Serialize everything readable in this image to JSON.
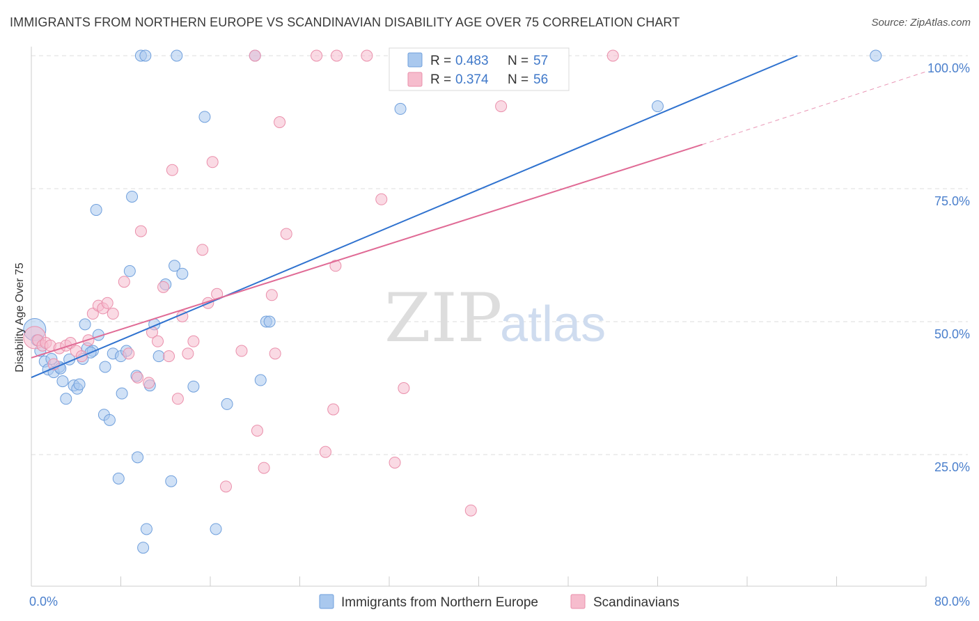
{
  "title": "IMMIGRANTS FROM NORTHERN EUROPE VS SCANDINAVIAN DISABILITY AGE OVER 75 CORRELATION CHART",
  "source": "Source: ZipAtlas.com",
  "watermark": {
    "part1": "ZIP",
    "part2": "atlas"
  },
  "colors": {
    "blue_fill": "#a9c8ee",
    "blue_stroke": "#6f9fdc",
    "blue_line": "#2f72cf",
    "pink_fill": "#f6bccd",
    "pink_stroke": "#ea8fab",
    "pink_line": "#e06a95",
    "grid": "#dddddd",
    "axis_text": "#4a7fcc"
  },
  "legend": {
    "rows": [
      {
        "r_label": "R =",
        "r_value": "0.483",
        "n_label": "N =",
        "n_value": "57"
      },
      {
        "r_label": "R =",
        "r_value": "0.374",
        "n_label": "N =",
        "n_value": "56"
      }
    ]
  },
  "chart_data": {
    "type": "scatter",
    "title": "IMMIGRANTS FROM NORTHERN EUROPE VS SCANDINAVIAN DISABILITY AGE OVER 75 CORRELATION CHART",
    "xlabel": "",
    "ylabel": "Disability Age Over 75",
    "xlim": [
      0,
      80
    ],
    "ylim": [
      0,
      104
    ],
    "x_tick_labels": [
      "0.0%",
      "80.0%"
    ],
    "y_ticks": [
      25,
      50,
      75,
      100
    ],
    "y_tick_labels": [
      "25.0%",
      "50.0%",
      "75.0%",
      "100.0%"
    ],
    "grid": true,
    "series": [
      {
        "name": "Immigrants from Northern Europe",
        "color": "#6f9fdc",
        "r": 0.483,
        "n": 57,
        "trend": {
          "x0": 0,
          "y0": 39.5,
          "x1": 68.5,
          "y1": 100
        },
        "points": [
          [
            0.3,
            48.5
          ],
          [
            0.5,
            46.5
          ],
          [
            0.8,
            44.5
          ],
          [
            1.2,
            42.5
          ],
          [
            1.5,
            41
          ],
          [
            1.8,
            43
          ],
          [
            2.0,
            40.5
          ],
          [
            2.5,
            41.5
          ],
          [
            2.8,
            38.8
          ],
          [
            3.1,
            35.5
          ],
          [
            3.4,
            42.9
          ],
          [
            3.8,
            38.0
          ],
          [
            4.1,
            37.4
          ],
          [
            4.3,
            38.2
          ],
          [
            4.6,
            43
          ],
          [
            4.8,
            49.5
          ],
          [
            5.0,
            45
          ],
          [
            5.5,
            44.5
          ],
          [
            5.8,
            71
          ],
          [
            6.0,
            47.5
          ],
          [
            6.5,
            32.5
          ],
          [
            6.6,
            41.5
          ],
          [
            7.0,
            31.5
          ],
          [
            7.3,
            44
          ],
          [
            7.8,
            20.5
          ],
          [
            8.0,
            43.5
          ],
          [
            8.1,
            36.5
          ],
          [
            8.5,
            44.5
          ],
          [
            8.8,
            59.5
          ],
          [
            9.0,
            73.5
          ],
          [
            9.4,
            39.8
          ],
          [
            9.5,
            24.5
          ],
          [
            9.8,
            100
          ],
          [
            10.0,
            7.5
          ],
          [
            10.2,
            100
          ],
          [
            10.3,
            11.0
          ],
          [
            10.6,
            38
          ],
          [
            11.0,
            49.5
          ],
          [
            11.4,
            43.5
          ],
          [
            12.0,
            57
          ],
          [
            12.5,
            20
          ],
          [
            12.8,
            60.5
          ],
          [
            13.0,
            100
          ],
          [
            13.5,
            59
          ],
          [
            14.5,
            37.8
          ],
          [
            15.5,
            88.5
          ],
          [
            16.5,
            11
          ],
          [
            17.5,
            34.5
          ],
          [
            20,
            100
          ],
          [
            20.5,
            39
          ],
          [
            21,
            50
          ],
          [
            21.3,
            50
          ],
          [
            33,
            90
          ],
          [
            56,
            90.5
          ],
          [
            75.5,
            100
          ],
          [
            2.6,
            41.2
          ],
          [
            5.3,
            44.2
          ]
        ]
      },
      {
        "name": "Scandinavians",
        "color": "#ea8fab",
        "r": 0.374,
        "n": 56,
        "trend": {
          "x0": 0,
          "y0": 43.2,
          "x1": 60,
          "y1": 83.3
        },
        "trend_dashed": {
          "x0": 60,
          "y0": 83.3,
          "x1": 80,
          "y1": 97
        },
        "points": [
          [
            0.3,
            47
          ],
          [
            0.6,
            46.5
          ],
          [
            1.0,
            45.5
          ],
          [
            1.3,
            46
          ],
          [
            1.7,
            45.5
          ],
          [
            2.0,
            42
          ],
          [
            2.5,
            45
          ],
          [
            3.1,
            45.5
          ],
          [
            3.5,
            46
          ],
          [
            4.0,
            44.5
          ],
          [
            4.5,
            43.5
          ],
          [
            5.1,
            46.5
          ],
          [
            5.5,
            51.5
          ],
          [
            6.0,
            53
          ],
          [
            6.4,
            52.5
          ],
          [
            6.8,
            53.5
          ],
          [
            7.3,
            51.5
          ],
          [
            8.3,
            57.5
          ],
          [
            8.7,
            44
          ],
          [
            9.5,
            39.5
          ],
          [
            9.8,
            67
          ],
          [
            10.5,
            38.5
          ],
          [
            10.8,
            48
          ],
          [
            11.3,
            46.3
          ],
          [
            11.8,
            56.5
          ],
          [
            12.3,
            43.5
          ],
          [
            12.6,
            78.5
          ],
          [
            13.1,
            35.5
          ],
          [
            13.5,
            51
          ],
          [
            14.0,
            44
          ],
          [
            14.5,
            46.3
          ],
          [
            15.3,
            63.5
          ],
          [
            15.8,
            53.5
          ],
          [
            16.2,
            80
          ],
          [
            16.6,
            55.2
          ],
          [
            17.4,
            19
          ],
          [
            18.8,
            44.5
          ],
          [
            20.0,
            100
          ],
          [
            20.2,
            29.5
          ],
          [
            20.8,
            22.5
          ],
          [
            21.5,
            55
          ],
          [
            21.8,
            44
          ],
          [
            22.2,
            87.5
          ],
          [
            22.8,
            66.5
          ],
          [
            25.5,
            100
          ],
          [
            26.3,
            25.5
          ],
          [
            27.0,
            33.5
          ],
          [
            27.2,
            60.5
          ],
          [
            27.3,
            100
          ],
          [
            30,
            100
          ],
          [
            31.3,
            73
          ],
          [
            32.5,
            23.5
          ],
          [
            33.3,
            37.5
          ],
          [
            39.3,
            14.5
          ],
          [
            42,
            90.5
          ],
          [
            52,
            100
          ]
        ]
      }
    ]
  },
  "bottom_legend": {
    "items": [
      {
        "label": "Immigrants from Northern Europe"
      },
      {
        "label": "Scandinavians"
      }
    ]
  }
}
